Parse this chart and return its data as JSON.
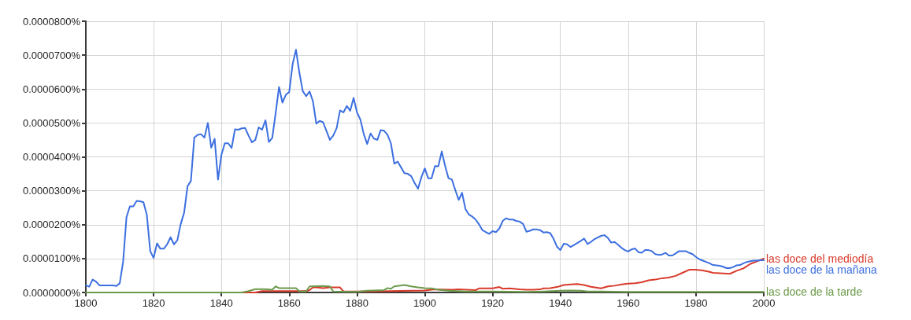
{
  "chart_data": {
    "type": "line",
    "grid": true,
    "marker": "none",
    "line_style": "solid",
    "xlim": [
      1800,
      2000
    ],
    "xticks": [
      1800,
      1820,
      1840,
      1860,
      1880,
      1900,
      1920,
      1940,
      1960,
      1980,
      2000
    ],
    "ylim": [
      0,
      8e-05
    ],
    "yticks": [
      {
        "value": 0,
        "label": "0.0000000%"
      },
      {
        "value": 1e-05,
        "label": "0.0000100%"
      },
      {
        "value": 2e-05,
        "label": "0.0000200%"
      },
      {
        "value": 3e-05,
        "label": "0.0000300%"
      },
      {
        "value": 4e-05,
        "label": "0.0000400%"
      },
      {
        "value": 5e-05,
        "label": "0.0000500%"
      },
      {
        "value": 6e-05,
        "label": "0.0000600%"
      },
      {
        "value": 7e-05,
        "label": "0.0000700%"
      },
      {
        "value": 8e-05,
        "label": "0.0000800%"
      }
    ],
    "series": [
      {
        "name": "las doce del mediodía",
        "color": "#d83a2a",
        "x": [
          1800,
          1850,
          1852,
          1865,
          1866,
          1867,
          1868,
          1870,
          1872,
          1875,
          1876,
          1880,
          1890,
          1900,
          1903,
          1908,
          1910,
          1915,
          1916,
          1920,
          1922,
          1923,
          1925,
          1928,
          1930,
          1932,
          1934,
          1935,
          1937,
          1939,
          1941,
          1943,
          1945,
          1947,
          1949,
          1952,
          1954,
          1956,
          1958,
          1960,
          1962,
          1964,
          1966,
          1968,
          1970,
          1972,
          1974,
          1976,
          1978,
          1980,
          1982,
          1984,
          1985,
          1987,
          1990,
          1992,
          1994,
          1996,
          1998,
          2000
        ],
        "values": [
          0,
          0,
          4e-07,
          4e-07,
          7e-07,
          1.5e-06,
          1.5e-06,
          1.3e-06,
          1.5e-06,
          1.5e-06,
          3e-07,
          3e-07,
          4e-07,
          6e-07,
          9e-07,
          8e-07,
          9e-07,
          7e-07,
          1.2e-06,
          1.2e-06,
          1.6e-06,
          1.1e-06,
          1.2e-06,
          9e-07,
          8e-07,
          8e-07,
          9e-07,
          1.2e-06,
          1.3e-06,
          1.6e-06,
          2.2e-06,
          2.4e-06,
          2.5e-06,
          2.2e-06,
          1.7e-06,
          1.2e-06,
          1.8e-06,
          2e-06,
          2.4e-06,
          2.6e-06,
          2.7e-06,
          3e-06,
          3.6e-06,
          3.8e-06,
          4.2e-06,
          4.4e-06,
          4.9e-06,
          5.8e-06,
          6.7e-06,
          6.7e-06,
          6.5e-06,
          6.1e-06,
          5.8e-06,
          5.7e-06,
          5.5e-06,
          6.4e-06,
          7.1e-06,
          8.4e-06,
          9.2e-06,
          1e-05
        ]
      },
      {
        "name": "las doce de la mañana",
        "color": "#3c6fe0",
        "x": [
          1800,
          1801,
          1802,
          1803,
          1804,
          1805,
          1806,
          1807,
          1808,
          1809,
          1810,
          1811,
          1812,
          1813,
          1814,
          1815,
          1816,
          1817,
          1818,
          1819,
          1820,
          1821,
          1822,
          1823,
          1824,
          1825,
          1826,
          1827,
          1828,
          1829,
          1830,
          1831,
          1832,
          1833,
          1834,
          1835,
          1836,
          1837,
          1838,
          1839,
          1840,
          1841,
          1842,
          1843,
          1844,
          1845,
          1846,
          1847,
          1848,
          1849,
          1850,
          1851,
          1852,
          1853,
          1854,
          1855,
          1856,
          1857,
          1858,
          1859,
          1860,
          1861,
          1862,
          1863,
          1864,
          1865,
          1866,
          1867,
          1868,
          1869,
          1870,
          1871,
          1872,
          1873,
          1874,
          1875,
          1876,
          1877,
          1878,
          1879,
          1880,
          1881,
          1882,
          1883,
          1884,
          1885,
          1886,
          1887,
          1888,
          1889,
          1890,
          1891,
          1892,
          1893,
          1894,
          1895,
          1896,
          1897,
          1898,
          1899,
          1900,
          1901,
          1902,
          1903,
          1904,
          1905,
          1906,
          1907,
          1908,
          1909,
          1910,
          1911,
          1912,
          1913,
          1914,
          1915,
          1916,
          1917,
          1918,
          1919,
          1920,
          1921,
          1922,
          1923,
          1924,
          1925,
          1926,
          1927,
          1928,
          1929,
          1930,
          1931,
          1932,
          1933,
          1934,
          1935,
          1936,
          1937,
          1938,
          1939,
          1940,
          1941,
          1942,
          1943,
          1944,
          1945,
          1946,
          1947,
          1948,
          1949,
          1950,
          1951,
          1952,
          1953,
          1954,
          1955,
          1956,
          1957,
          1958,
          1959,
          1960,
          1961,
          1962,
          1963,
          1964,
          1965,
          1966,
          1967,
          1968,
          1969,
          1970,
          1971,
          1972,
          1973,
          1974,
          1975,
          1976,
          1977,
          1978,
          1979,
          1980,
          1981,
          1982,
          1983,
          1984,
          1985,
          1986,
          1987,
          1988,
          1989,
          1990,
          1991,
          1992,
          1993,
          1994,
          1995,
          1996,
          1997,
          1998,
          1999,
          2000
        ],
        "values": [
          2.1e-06,
          1.7e-06,
          3.8e-06,
          3.2e-06,
          2.1e-06,
          2.1e-06,
          2.1e-06,
          2.1e-06,
          2.1e-06,
          1.9e-06,
          2.7e-06,
          9e-06,
          2.22e-05,
          2.54e-05,
          2.54e-05,
          2.7e-05,
          2.69e-05,
          2.66e-05,
          2.29e-05,
          1.22e-05,
          1.02e-05,
          1.45e-05,
          1.29e-05,
          1.29e-05,
          1.42e-05,
          1.63e-05,
          1.42e-05,
          1.54e-05,
          2.02e-05,
          2.35e-05,
          3.13e-05,
          3.29e-05,
          4.57e-05,
          4.65e-05,
          4.67e-05,
          4.57e-05,
          5e-05,
          4.27e-05,
          4.53e-05,
          3.33e-05,
          4.06e-05,
          4.4e-05,
          4.4e-05,
          4.26e-05,
          4.81e-05,
          4.8e-05,
          4.84e-05,
          4.85e-05,
          4.63e-05,
          4.43e-05,
          4.5e-05,
          4.87e-05,
          4.8e-05,
          5.08e-05,
          4.44e-05,
          4.56e-05,
          5.29e-05,
          6.06e-05,
          5.6e-05,
          5.83e-05,
          5.91e-05,
          6.73e-05,
          7.16e-05,
          6.48e-05,
          5.94e-05,
          5.79e-05,
          5.93e-05,
          5.64e-05,
          4.98e-05,
          5.06e-05,
          5.02e-05,
          4.76e-05,
          4.5e-05,
          4.63e-05,
          4.85e-05,
          5.37e-05,
          5.31e-05,
          5.5e-05,
          5.36e-05,
          5.74e-05,
          5.31e-05,
          5.1e-05,
          4.67e-05,
          4.38e-05,
          4.69e-05,
          4.54e-05,
          4.5e-05,
          4.79e-05,
          4.77e-05,
          4.65e-05,
          4.4e-05,
          3.8e-05,
          3.86e-05,
          3.69e-05,
          3.52e-05,
          3.5e-05,
          3.43e-05,
          3.23e-05,
          3.06e-05,
          3.4e-05,
          3.66e-05,
          3.37e-05,
          3.37e-05,
          3.73e-05,
          3.72e-05,
          4.16e-05,
          3.73e-05,
          3.37e-05,
          3.33e-05,
          3.02e-05,
          2.73e-05,
          2.94e-05,
          2.46e-05,
          2.3e-05,
          2.24e-05,
          2.15e-05,
          2.01e-05,
          1.84e-05,
          1.78e-05,
          1.73e-05,
          1.81e-05,
          1.78e-05,
          1.89e-05,
          2.11e-05,
          2.19e-05,
          2.15e-05,
          2.15e-05,
          2.11e-05,
          2.09e-05,
          2.02e-05,
          1.79e-05,
          1.82e-05,
          1.86e-05,
          1.86e-05,
          1.84e-05,
          1.77e-05,
          1.78e-05,
          1.75e-05,
          1.58e-05,
          1.35e-05,
          1.25e-05,
          1.44e-05,
          1.42e-05,
          1.34e-05,
          1.4e-05,
          1.46e-05,
          1.52e-05,
          1.59e-05,
          1.43e-05,
          1.49e-05,
          1.57e-05,
          1.62e-05,
          1.67e-05,
          1.69e-05,
          1.61e-05,
          1.47e-05,
          1.49e-05,
          1.41e-05,
          1.32e-05,
          1.25e-05,
          1.21e-05,
          1.27e-05,
          1.3e-05,
          1.19e-05,
          1.17e-05,
          1.25e-05,
          1.25e-05,
          1.22e-05,
          1.13e-05,
          1.11e-05,
          1.12e-05,
          1.17e-05,
          1.09e-05,
          1.09e-05,
          1.15e-05,
          1.22e-05,
          1.22e-05,
          1.22e-05,
          1.17e-05,
          1.13e-05,
          1.05e-05,
          9.8e-06,
          9.4e-06,
          9e-06,
          8.6e-06,
          8.1e-06,
          8e-06,
          7.9e-06,
          7.6e-06,
          7.2e-06,
          7.2e-06,
          7.5e-06,
          8e-06,
          8.1e-06,
          8.6e-06,
          9e-06,
          9.2e-06,
          9.4e-06,
          9.4e-06,
          9.5e-06,
          9.5e-06
        ]
      },
      {
        "name": "las doce de la tarde",
        "color": "#6b9a4a",
        "x": [
          1800,
          1846,
          1848,
          1850,
          1853,
          1855,
          1856,
          1857,
          1862,
          1863,
          1865,
          1866,
          1870,
          1872,
          1873,
          1880,
          1883,
          1888,
          1889,
          1890,
          1891,
          1894,
          1896,
          1898,
          1900,
          1902,
          1904,
          1907,
          1912,
          1920,
          1930,
          1935,
          1940,
          1943,
          1946,
          1948,
          1960,
          2000
        ],
        "values": [
          0,
          0,
          4e-07,
          1e-06,
          1e-06,
          8e-07,
          1.8e-06,
          1.3e-06,
          1.3e-06,
          3e-07,
          3e-07,
          1.8e-06,
          1.9e-06,
          1.8e-06,
          3e-07,
          2e-07,
          5e-07,
          7e-07,
          1.3e-06,
          1.1e-06,
          1.8e-06,
          2.2e-06,
          1.8e-06,
          1.5e-06,
          1.3e-06,
          1.2e-06,
          8e-07,
          5e-07,
          3e-07,
          3e-07,
          2e-07,
          3e-07,
          5e-07,
          6e-07,
          5e-07,
          3e-07,
          2e-07,
          2e-07
        ]
      }
    ]
  }
}
